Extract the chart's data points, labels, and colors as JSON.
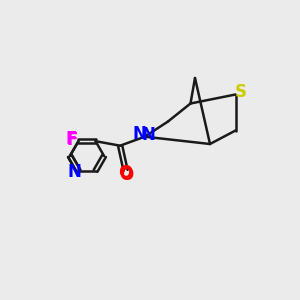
{
  "background_color": "#ebebeb",
  "bond_color": "#1a1a1a",
  "bond_width": 1.8,
  "atom_colors": {
    "N": "#0000ff",
    "O": "#ff0000",
    "S": "#cccc00",
    "F": "#ff00ff",
    "C": "#1a1a1a"
  },
  "font_size": 11,
  "figsize": [
    3.0,
    3.0
  ],
  "dpi": 100
}
